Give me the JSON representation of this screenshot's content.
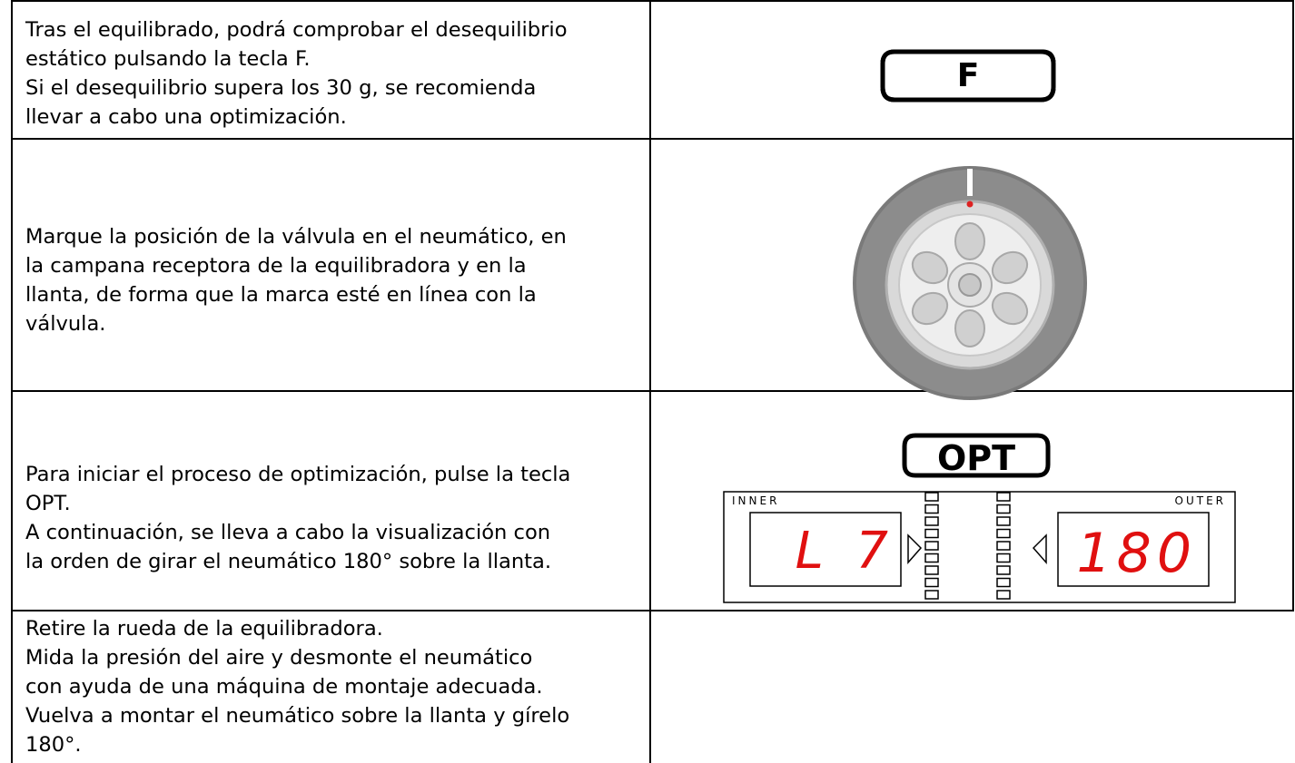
{
  "rows": [
    {
      "lines": [
        "Tras el equilibrado, podrá comprobar el desequilibrio",
        "estático pulsando la tecla F.",
        "Si el desequilibrio supera los 30 g, se recomienda",
        "llevar a cabo una optimización."
      ]
    },
    {
      "lines": [
        "Marque la posición de la válvula en el neumático, en",
        "la campana receptora de la equilibradora y en la",
        "llanta, de forma que la marca esté en línea con la",
        "válvula."
      ]
    },
    {
      "lines": [
        "Para iniciar el proceso de optimización, pulse la tecla",
        "OPT.",
        "A continuación, se lleva a cabo la visualización con",
        "la orden de girar el neumático 180° sobre la llanta."
      ]
    },
    {
      "lines": [
        "Retire la rueda de la equilibradora.",
        "Mida la presión del aire y desmonte el neumático",
        "con ayuda de una máquina de montaje adecuada.",
        "Vuelva a montar el neumático sobre la llanta y gírelo",
        "180°."
      ]
    }
  ],
  "key_f": "F",
  "key_opt": "OPT",
  "display": {
    "inner_label": "INNER",
    "outer_label": "OUTER",
    "inner": "L  7",
    "outer": "180"
  }
}
